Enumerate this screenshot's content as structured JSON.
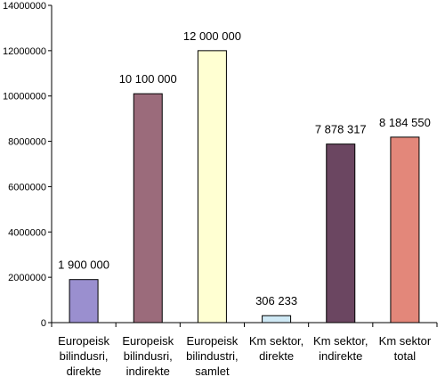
{
  "chart_data": {
    "type": "bar",
    "categories": [
      [
        "Europeisk",
        "bilindusri,",
        "direkte"
      ],
      [
        "Europeisk",
        "bilindusri,",
        "indirekte"
      ],
      [
        "Europeisk",
        "bilindustri,",
        "samlet"
      ],
      [
        "Km sektor,",
        "direkte"
      ],
      [
        "Km sektor,",
        "indirekte"
      ],
      [
        "Km sektor",
        "total"
      ]
    ],
    "values": [
      1900000,
      10100000,
      12000000,
      306233,
      7878317,
      8184550
    ],
    "data_labels": [
      "1 900 000",
      "10 100 000",
      "12 000 000",
      "306 233",
      "7 878 317",
      "8 184 550"
    ],
    "colors": [
      "#9a8fcf",
      "#9b6b7b",
      "#ffffd2",
      "#cfe9f5",
      "#6b4661",
      "#e3877a"
    ],
    "ylim": [
      0,
      14000000
    ],
    "yticks": [
      0,
      2000000,
      4000000,
      6000000,
      8000000,
      10000000,
      12000000,
      14000000
    ],
    "ytick_labels": [
      "0",
      "2000000",
      "4000000",
      "6000000",
      "8000000",
      "10000000",
      "12000000",
      "14000000"
    ],
    "grid": false,
    "title": "",
    "xlabel": "",
    "ylabel": ""
  }
}
